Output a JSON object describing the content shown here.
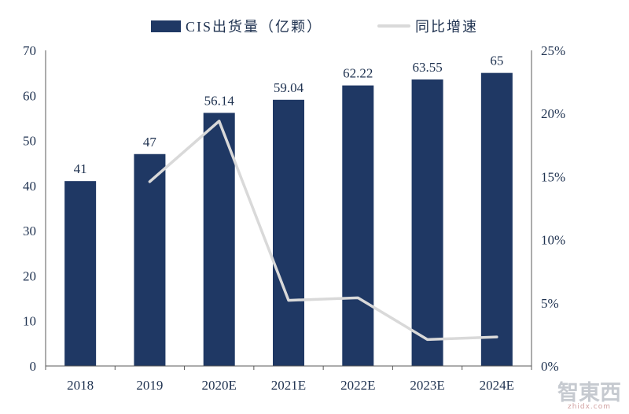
{
  "legend": [
    {
      "label": "CIS出货量（亿颗）",
      "type": "bar"
    },
    {
      "label": "同比增速",
      "type": "line"
    }
  ],
  "watermark": {
    "text": "智東西",
    "sub": "zhidx.com"
  },
  "colors": {
    "bar": "#1F3864",
    "line": "#D9D9D9",
    "text": "#1F3250",
    "axis": "#595959"
  },
  "chart_data": {
    "type": "bar",
    "subtype": "bar+line combo, secondary percent axis",
    "categories": [
      "2018",
      "2019",
      "2020E",
      "2021E",
      "2022E",
      "2023E",
      "2024E"
    ],
    "series": [
      {
        "name": "CIS出货量（亿颗）",
        "type": "bar",
        "axis": "left",
        "values": [
          41,
          47,
          56.14,
          59.04,
          62.22,
          63.55,
          65
        ]
      },
      {
        "name": "同比增速",
        "type": "line",
        "axis": "right",
        "values_percent": [
          null,
          14.6,
          19.4,
          5.2,
          5.4,
          2.1,
          2.3
        ]
      }
    ],
    "bar_labels": [
      "41",
      "47",
      "56.14",
      "59.04",
      "62.22",
      "63.55",
      "65"
    ],
    "left_axis": {
      "min": 0,
      "max": 70,
      "ticks": [
        0,
        10,
        20,
        30,
        40,
        50,
        60,
        70
      ]
    },
    "right_axis": {
      "min": 0,
      "max": 25,
      "ticks": [
        "0%",
        "5%",
        "10%",
        "15%",
        "20%",
        "25%"
      ]
    },
    "grid": false,
    "legend_position": "top"
  }
}
